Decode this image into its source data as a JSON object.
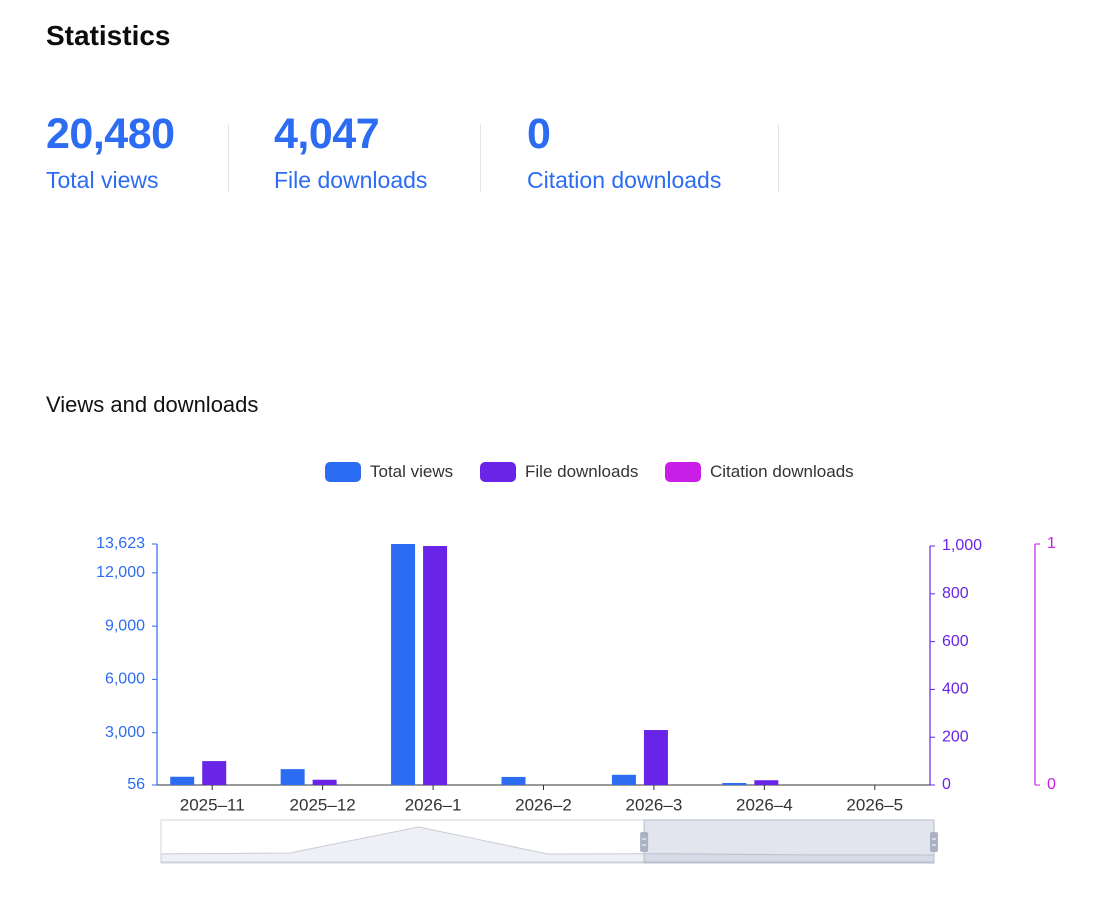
{
  "page": {
    "title": "Statistics"
  },
  "stats": [
    {
      "value": "20,480",
      "label": "Total views"
    },
    {
      "value": "4,047",
      "label": "File downloads"
    },
    {
      "value": "0",
      "label": "Citation downloads"
    }
  ],
  "section": {
    "title": "Views and downloads"
  },
  "colors": {
    "views": "#2c6cf2",
    "downloads": "#6a24e8",
    "citations": "#c81ee8",
    "axis_text": "#333333"
  },
  "chart_data": {
    "type": "bar",
    "title": "Views and downloads",
    "categories": [
      "2025–11",
      "2025–12",
      "2026–1",
      "2026–2",
      "2026–3",
      "2026–4",
      "2026–5"
    ],
    "series": [
      {
        "name": "Total views",
        "axis": "left",
        "color": "#2c6cf2",
        "values": [
          520,
          950,
          13623,
          510,
          630,
          90,
          0
        ]
      },
      {
        "name": "File downloads",
        "axis": "right",
        "color": "#6a24e8",
        "values": [
          100,
          22,
          1000,
          0,
          230,
          20,
          0
        ]
      },
      {
        "name": "Citation downloads",
        "axis": "right2",
        "color": "#c81ee8",
        "values": [
          0,
          0,
          0,
          0,
          0,
          0,
          0
        ]
      }
    ],
    "y_axes": {
      "left": {
        "min": 56,
        "max": 13623,
        "ticks": [
          56,
          3000,
          6000,
          9000,
          12000,
          13623
        ],
        "tick_labels": [
          "56",
          "3,000",
          "6,000",
          "9,000",
          "12,000",
          "13,623"
        ]
      },
      "right": {
        "min": 0,
        "max": 1000,
        "ticks": [
          0,
          200,
          400,
          600,
          800,
          1000
        ],
        "tick_labels": [
          "0",
          "200",
          "400",
          "600",
          "800",
          "1,000"
        ]
      },
      "right2": {
        "min": 0,
        "max": 1,
        "ticks": [
          0,
          1
        ],
        "tick_labels": [
          "0",
          "1"
        ]
      }
    },
    "legend_position": "top-center",
    "grid": false,
    "data_zoom": {
      "start_fraction": 0.625,
      "end_fraction": 1.0
    }
  }
}
